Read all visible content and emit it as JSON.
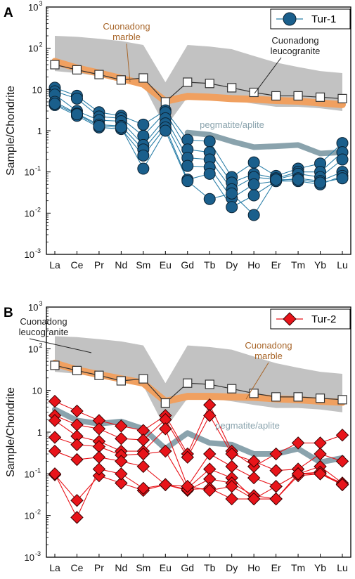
{
  "chart_data": [
    {
      "type": "line",
      "panel_label": "A",
      "ylabel": "Sample/Chondrite",
      "y_scale": "log",
      "ylim": [
        0.001,
        1000
      ],
      "y_ticks": [
        {
          "value": 0.001,
          "base": "10",
          "exp": "-3"
        },
        {
          "value": 0.01,
          "base": "10",
          "exp": "-2"
        },
        {
          "value": 0.1,
          "base": "10",
          "exp": "-1"
        },
        {
          "value": 1,
          "base": "1",
          "exp": ""
        },
        {
          "value": 10,
          "base": "10",
          "exp": ""
        },
        {
          "value": 100,
          "base": "10",
          "exp": "2"
        },
        {
          "value": 1000,
          "base": "10",
          "exp": "3"
        }
      ],
      "categories": [
        "La",
        "Ce",
        "Pr",
        "Nd",
        "Sm",
        "Eu",
        "Gd",
        "Tb",
        "Dy",
        "Ho",
        "Er",
        "Tm",
        "Yb",
        "Lu"
      ],
      "legend": {
        "label": "Tur-1",
        "position": "top-right",
        "marker": "circle",
        "color": "#1a5f8c",
        "line_color": "#2b7fa8"
      },
      "references": {
        "leucogranite_range": {
          "upper": [
            200,
            190,
            170,
            150,
            120,
            15,
            120,
            110,
            95,
            65,
            45,
            35,
            28,
            25
          ],
          "lower": [
            28,
            25,
            21,
            17,
            13,
            1.2,
            6.5,
            6.5,
            5.5,
            4.5,
            3.8,
            3.8,
            3.5,
            3.0
          ]
        },
        "leucogranite_mean": {
          "label": "Cuonadong\nleucogranite",
          "color": "#333333",
          "values": [
            40,
            30,
            23,
            17,
            19,
            5,
            15,
            14,
            11,
            8.5,
            7,
            7,
            6.5,
            6
          ]
        },
        "marble": {
          "label": "Cuonadong\nmarble",
          "color": "#f0a060",
          "text_color": "#a8662a",
          "values": [
            48,
            33,
            25,
            18.5,
            13.5,
            5.2,
            6.8,
            6.5,
            6,
            5.8,
            5.4,
            5.2,
            4.7,
            4.3
          ]
        },
        "pegmatite": {
          "label": "pegmatite/aplite",
          "color": "#8aa3ad",
          "text_color": "#8aa3ad",
          "values": [
            null,
            null,
            null,
            null,
            null,
            null,
            0.9,
            0.8,
            0.55,
            0.4,
            0.42,
            0.45,
            0.28,
            0.3
          ]
        }
      },
      "series": [
        {
          "values": [
            11,
            7,
            2.8,
            2.3,
            1.4,
            3.1,
            0.6,
            0.55,
            0.075,
            0.17,
            0.08,
            0.12,
            0.16,
            0.5
          ]
        },
        {
          "values": [
            9,
            6,
            2.2,
            2.0,
            0.75,
            2.8,
            0.35,
            0.3,
            0.055,
            0.09,
            0.07,
            0.1,
            0.1,
            0.3
          ]
        },
        {
          "values": [
            7.5,
            3,
            1.8,
            1.7,
            0.45,
            2.0,
            0.22,
            0.2,
            0.038,
            0.075,
            0.065,
            0.09,
            0.075,
            0.2
          ]
        },
        {
          "values": [
            5,
            2.6,
            1.4,
            1.3,
            0.35,
            1.5,
            0.14,
            0.13,
            0.023,
            0.05,
            0.06,
            0.07,
            0.06,
            0.1
          ]
        },
        {
          "values": [
            4.2,
            2.3,
            1.2,
            1.1,
            0.25,
            1.2,
            0.065,
            0.09,
            0.014,
            0.027,
            0.06,
            0.06,
            0.05,
            0.08
          ]
        },
        {
          "values": [
            4.5,
            2.5,
            1.3,
            1.2,
            0.12,
            1.0,
            0.06,
            0.022,
            0.03,
            0.009,
            0.065,
            0.065,
            0.055,
            0.07
          ]
        }
      ]
    },
    {
      "type": "line",
      "panel_label": "B",
      "ylabel": "Sample/Chondrite",
      "y_scale": "log",
      "ylim": [
        0.001,
        1000
      ],
      "y_ticks": [
        {
          "value": 0.001,
          "base": "10",
          "exp": "-3"
        },
        {
          "value": 0.01,
          "base": "10",
          "exp": "-2"
        },
        {
          "value": 0.1,
          "base": "10",
          "exp": "-1"
        },
        {
          "value": 1,
          "base": "1",
          "exp": ""
        },
        {
          "value": 10,
          "base": "10",
          "exp": ""
        },
        {
          "value": 100,
          "base": "10",
          "exp": "2"
        },
        {
          "value": 1000,
          "base": "10",
          "exp": "3"
        }
      ],
      "categories": [
        "La",
        "Ce",
        "Pr",
        "Nd",
        "Sm",
        "Eu",
        "Gd",
        "Tb",
        "Dy",
        "Ho",
        "Er",
        "Tm",
        "Yb",
        "Lu"
      ],
      "legend": {
        "label": "Tur-2",
        "position": "top-right",
        "marker": "diamond",
        "color": "#e8141a",
        "line_color": "#e8141a"
      },
      "references": {
        "leucogranite_range": {
          "upper": [
            200,
            190,
            170,
            150,
            120,
            15,
            120,
            110,
            95,
            65,
            45,
            35,
            28,
            25
          ],
          "lower": [
            28,
            25,
            21,
            17,
            13,
            1.2,
            6.5,
            6.5,
            5.5,
            4.5,
            3.8,
            3.8,
            3.5,
            3.0
          ]
        },
        "leucogranite_mean": {
          "label": "Cuonadong\nleucogranite",
          "color": "#333333",
          "values": [
            40,
            30,
            23,
            17,
            19,
            5,
            15,
            14,
            11,
            8.5,
            7,
            7,
            6.5,
            6
          ]
        },
        "marble": {
          "label": "Cuonadong\nmarble",
          "color": "#f0a060",
          "text_color": "#a8662a",
          "values": [
            45,
            31,
            24,
            19,
            15,
            5.5,
            7.2,
            7.2,
            7,
            6.8,
            6.3,
            6,
            5.5,
            5.2
          ]
        },
        "pegmatite": {
          "label": "pegmatite/aplite",
          "color": "#8aa3ad",
          "text_color": "#8aa3ad",
          "values": [
            3.5,
            1.9,
            1.6,
            1.8,
            1.2,
            0.4,
            0.95,
            0.55,
            0.5,
            0.3,
            0.3,
            0.4,
            0.19,
            0.24
          ]
        }
      },
      "series": [
        {
          "values": [
            5.5,
            3.2,
            1.9,
            1.4,
            1.1,
            2.5,
            0.3,
            4.5,
            0.35,
            0.15,
            0.3,
            0.55,
            0.55,
            0.85
          ]
        },
        {
          "values": [
            2.5,
            1.5,
            1.2,
            0.7,
            0.65,
            2.0,
            0.25,
            2.5,
            0.3,
            0.2,
            0.12,
            0.13,
            0.3,
            0.2
          ]
        },
        {
          "values": [
            1.9,
            0.8,
            0.6,
            0.35,
            0.35,
            1.2,
            0.05,
            0.3,
            0.15,
            0.08,
            0.05,
            0.1,
            0.15,
            0.06
          ]
        },
        {
          "values": [
            0.75,
            0.5,
            0.45,
            0.28,
            0.3,
            0.35,
            0.045,
            0.13,
            0.08,
            0.025,
            0.025,
            0.09,
            0.1,
            0.055
          ]
        },
        {
          "values": [
            0.35,
            0.22,
            0.25,
            0.2,
            0.15,
            0.055,
            0.04,
            0.075,
            0.06,
            0.03,
            0.025,
            0.1,
            0.1,
            0.06
          ]
        },
        {
          "values": [
            0.095,
            0.023,
            0.09,
            0.06,
            0.04,
            0.055,
            0.042,
            0.045,
            0.025,
            0.025,
            0.025,
            0.1,
            0.11,
            0.055
          ]
        },
        {
          "values": [
            0.1,
            0.009,
            0.13,
            0.1,
            0.045,
            0.055,
            0.05,
            0.04,
            0.05,
            0.025,
            0.05,
            0.1,
            0.1,
            0.055
          ]
        }
      ]
    }
  ]
}
